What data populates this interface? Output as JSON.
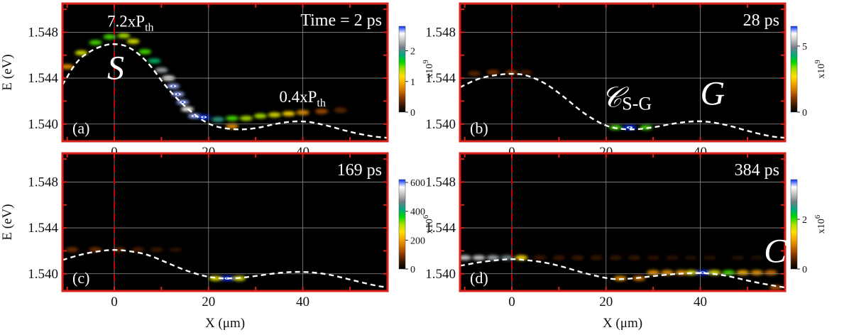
{
  "figure": {
    "x_unit_label": "X (μm)",
    "y_unit_label": "E (eV)",
    "colorbar_unit_label": "x10"
  },
  "chart_data": [
    {
      "id": "a",
      "type": "heatmap",
      "panel_label": "(a)",
      "annotation_time": "Time = 2 ps",
      "xlabel": "",
      "ylabel": "E (eV)",
      "xlim": [
        -11,
        58
      ],
      "ylim": [
        1.5385,
        1.5505
      ],
      "xticks": [
        0,
        20,
        40
      ],
      "yticks": [
        1.54,
        1.544,
        1.548
      ],
      "colorbar": {
        "exponent": "9",
        "ticks": [
          0,
          1,
          2
        ],
        "max": 2.8
      },
      "annotations": [
        {
          "id": "pump-high",
          "text": "7.2xP",
          "subscript": "th",
          "x": -1.5,
          "y": 1.5485
        },
        {
          "id": "pump-low",
          "text": "0.4xP",
          "subscript": "th",
          "x": 35,
          "y": 1.5419
        },
        {
          "id": "label-S",
          "text": "S",
          "x": -1.5,
          "y": 1.5439,
          "italic": true
        }
      ],
      "potential_curve": [
        [
          -11,
          1.5434
        ],
        [
          -8,
          1.5455
        ],
        [
          -5,
          1.5464
        ],
        [
          -2,
          1.5469
        ],
        [
          0,
          1.547
        ],
        [
          3,
          1.5468
        ],
        [
          7,
          1.5455
        ],
        [
          11,
          1.5432
        ],
        [
          15,
          1.5415
        ],
        [
          19,
          1.5402
        ],
        [
          22,
          1.5397
        ],
        [
          26,
          1.5395
        ],
        [
          30,
          1.5396
        ],
        [
          35,
          1.5401
        ],
        [
          40,
          1.5403
        ],
        [
          45,
          1.5399
        ],
        [
          50,
          1.5393
        ],
        [
          55,
          1.5389
        ],
        [
          58,
          1.5388
        ]
      ],
      "emission": [
        {
          "x": -10,
          "y": 1.545,
          "z": 0.3
        },
        {
          "x": -7,
          "y": 1.5462,
          "z": 0.45
        },
        {
          "x": -4,
          "y": 1.5471,
          "z": 0.55
        },
        {
          "x": -1,
          "y": 1.5476,
          "z": 0.55
        },
        {
          "x": 2,
          "y": 1.5477,
          "z": 0.5
        },
        {
          "x": 4,
          "y": 1.5472,
          "z": 0.45
        },
        {
          "x": 6.5,
          "y": 1.5463,
          "z": 0.55
        },
        {
          "x": 8.5,
          "y": 1.5455,
          "z": 0.65
        },
        {
          "x": 10,
          "y": 1.5447,
          "z": 0.8
        },
        {
          "x": 11.5,
          "y": 1.544,
          "z": 0.9
        },
        {
          "x": 12.5,
          "y": 1.5433,
          "z": 0.95
        },
        {
          "x": 13.5,
          "y": 1.5426,
          "z": 0.95
        },
        {
          "x": 14.5,
          "y": 1.5419,
          "z": 0.95
        },
        {
          "x": 15.5,
          "y": 1.5413,
          "z": 0.9
        },
        {
          "x": 17,
          "y": 1.5407,
          "z": 0.95
        },
        {
          "x": 19,
          "y": 1.5406,
          "z": 1.0
        },
        {
          "x": 22,
          "y": 1.5404,
          "z": 0.7
        },
        {
          "x": 25,
          "y": 1.5405,
          "z": 0.55
        },
        {
          "x": 28,
          "y": 1.5405,
          "z": 0.5
        },
        {
          "x": 31,
          "y": 1.5407,
          "z": 0.5
        },
        {
          "x": 34,
          "y": 1.5408,
          "z": 0.45
        },
        {
          "x": 37,
          "y": 1.5409,
          "z": 0.4
        },
        {
          "x": 40,
          "y": 1.541,
          "z": 0.3
        },
        {
          "x": 44,
          "y": 1.5411,
          "z": 0.2
        },
        {
          "x": 48,
          "y": 1.5412,
          "z": 0.12
        },
        {
          "x": 25,
          "y": 1.5398,
          "z": 0.3
        }
      ]
    },
    {
      "id": "b",
      "type": "heatmap",
      "panel_label": "(b)",
      "annotation_time": "28 ps",
      "xlabel": "",
      "ylabel": "",
      "xlim": [
        -11,
        58
      ],
      "ylim": [
        1.5385,
        1.5505
      ],
      "xticks": [
        0,
        20,
        40
      ],
      "yticks": [
        1.54,
        1.544,
        1.548
      ],
      "colorbar": {
        "exponent": "9",
        "ticks": [
          0,
          5
        ],
        "max": 6.5
      },
      "annotations": [
        {
          "id": "label-C-SG",
          "text": "𝒞",
          "subscript": "S-G",
          "x": 19,
          "y": 1.5415,
          "italic": true
        },
        {
          "id": "label-G",
          "text": "G",
          "x": 40,
          "y": 1.5417,
          "italic": true
        }
      ],
      "potential_curve": [
        [
          -11,
          1.5432
        ],
        [
          -7,
          1.544
        ],
        [
          -3,
          1.5443
        ],
        [
          0,
          1.5444
        ],
        [
          3,
          1.5443
        ],
        [
          7,
          1.5436
        ],
        [
          11,
          1.5424
        ],
        [
          15,
          1.541
        ],
        [
          19,
          1.54
        ],
        [
          22,
          1.5396
        ],
        [
          26,
          1.5395
        ],
        [
          30,
          1.5397
        ],
        [
          35,
          1.5401
        ],
        [
          40,
          1.5403
        ],
        [
          45,
          1.54
        ],
        [
          50,
          1.5394
        ],
        [
          55,
          1.5389
        ],
        [
          58,
          1.5388
        ]
      ],
      "emission": [
        {
          "x": 25,
          "y": 1.5397,
          "z": 1.0
        },
        {
          "x": 22,
          "y": 1.5397,
          "z": 0.55
        },
        {
          "x": 28.5,
          "y": 1.5397,
          "z": 0.55
        },
        {
          "x": -8,
          "y": 1.5444,
          "z": 0.12
        },
        {
          "x": -4,
          "y": 1.5445,
          "z": 0.15
        },
        {
          "x": 0,
          "y": 1.5445,
          "z": 0.15
        },
        {
          "x": 3,
          "y": 1.5445,
          "z": 0.1
        }
      ]
    },
    {
      "id": "c",
      "type": "heatmap",
      "panel_label": "(c)",
      "annotation_time": "169 ps",
      "xlabel": "X (μm)",
      "ylabel": "E (eV)",
      "xlim": [
        -11,
        58
      ],
      "ylim": [
        1.5385,
        1.5505
      ],
      "xticks": [
        0,
        20,
        40
      ],
      "yticks": [
        1.54,
        1.544,
        1.548
      ],
      "colorbar": {
        "exponent": "6",
        "ticks": [
          0,
          200,
          400,
          600
        ],
        "max": 620
      },
      "annotations": [],
      "potential_curve": [
        [
          -11,
          1.5412
        ],
        [
          -7,
          1.5417
        ],
        [
          -3,
          1.542
        ],
        [
          0,
          1.5421
        ],
        [
          3,
          1.542
        ],
        [
          7,
          1.5417
        ],
        [
          11,
          1.541
        ],
        [
          15,
          1.5403
        ],
        [
          19,
          1.5398
        ],
        [
          22,
          1.5396
        ],
        [
          26,
          1.5396
        ],
        [
          30,
          1.5398
        ],
        [
          35,
          1.5401
        ],
        [
          40,
          1.5402
        ],
        [
          45,
          1.54
        ],
        [
          50,
          1.5395
        ],
        [
          55,
          1.539
        ],
        [
          58,
          1.5388
        ]
      ],
      "emission": [
        {
          "x": 24,
          "y": 1.5396,
          "z": 1.0
        },
        {
          "x": 21.5,
          "y": 1.5396,
          "z": 0.45
        },
        {
          "x": 26.5,
          "y": 1.5396,
          "z": 0.45
        },
        {
          "x": -9,
          "y": 1.5421,
          "z": 0.14
        },
        {
          "x": -4,
          "y": 1.5421,
          "z": 0.14
        },
        {
          "x": 1,
          "y": 1.5421,
          "z": 0.12
        },
        {
          "x": 5,
          "y": 1.5421,
          "z": 0.1
        },
        {
          "x": 9,
          "y": 1.5421,
          "z": 0.08
        },
        {
          "x": 13,
          "y": 1.5421,
          "z": 0.06
        }
      ]
    },
    {
      "id": "d",
      "type": "heatmap",
      "panel_label": "(d)",
      "annotation_time": "384 ps",
      "xlabel": "X (μm)",
      "ylabel": "",
      "xlim": [
        -11,
        58
      ],
      "ylim": [
        1.5385,
        1.5505
      ],
      "xticks": [
        0,
        20,
        40
      ],
      "yticks": [
        1.54,
        1.544,
        1.548
      ],
      "colorbar": {
        "exponent": "6",
        "ticks": [
          0,
          2
        ],
        "max": 3.6
      },
      "annotations": [
        {
          "id": "label-C",
          "text": "C",
          "x": 53.5,
          "y": 1.541,
          "italic": true
        }
      ],
      "potential_curve": [
        [
          -11,
          1.5407
        ],
        [
          -7,
          1.541
        ],
        [
          -3,
          1.5412
        ],
        [
          0,
          1.5413
        ],
        [
          3,
          1.5412
        ],
        [
          7,
          1.541
        ],
        [
          11,
          1.5406
        ],
        [
          15,
          1.5401
        ],
        [
          19,
          1.5397
        ],
        [
          22,
          1.5395
        ],
        [
          26,
          1.5396
        ],
        [
          30,
          1.5398
        ],
        [
          35,
          1.54
        ],
        [
          40,
          1.5401
        ],
        [
          45,
          1.5399
        ],
        [
          50,
          1.5394
        ],
        [
          55,
          1.539
        ],
        [
          58,
          1.5388
        ]
      ],
      "emission": [
        {
          "x": -10,
          "y": 1.5414,
          "z": 0.85
        },
        {
          "x": -7,
          "y": 1.5414,
          "z": 0.85
        },
        {
          "x": -4,
          "y": 1.5414,
          "z": 0.8
        },
        {
          "x": -1,
          "y": 1.5414,
          "z": 0.75
        },
        {
          "x": 2,
          "y": 1.5414,
          "z": 0.4
        },
        {
          "x": 40.5,
          "y": 1.5401,
          "z": 1.0
        },
        {
          "x": 38,
          "y": 1.5401,
          "z": 0.45
        },
        {
          "x": 43,
          "y": 1.5401,
          "z": 0.45
        },
        {
          "x": 46,
          "y": 1.5401,
          "z": 0.55
        },
        {
          "x": 23,
          "y": 1.5396,
          "z": 0.3
        },
        {
          "x": 27,
          "y": 1.5396,
          "z": 0.25
        },
        {
          "x": 30,
          "y": 1.5401,
          "z": 0.3
        },
        {
          "x": 33,
          "y": 1.5401,
          "z": 0.3
        },
        {
          "x": 36,
          "y": 1.5401,
          "z": 0.3
        },
        {
          "x": 49,
          "y": 1.5401,
          "z": 0.35
        },
        {
          "x": 52,
          "y": 1.5401,
          "z": 0.3
        },
        {
          "x": 55,
          "y": 1.5401,
          "z": 0.25
        },
        {
          "x": 6,
          "y": 1.5414,
          "z": 0.08
        },
        {
          "x": 10,
          "y": 1.5414,
          "z": 0.08
        },
        {
          "x": 14,
          "y": 1.5414,
          "z": 0.08
        },
        {
          "x": 18,
          "y": 1.5414,
          "z": 0.07
        },
        {
          "x": 22,
          "y": 1.5414,
          "z": 0.07
        },
        {
          "x": 26,
          "y": 1.5414,
          "z": 0.07
        },
        {
          "x": 30,
          "y": 1.5414,
          "z": 0.06
        },
        {
          "x": 34,
          "y": 1.5414,
          "z": 0.06
        },
        {
          "x": 38,
          "y": 1.5414,
          "z": 0.05
        },
        {
          "x": 42,
          "y": 1.5414,
          "z": 0.05
        },
        {
          "x": 48,
          "y": 1.5414,
          "z": 0.05
        },
        {
          "x": 52,
          "y": 1.5414,
          "z": 0.04
        },
        {
          "x": 56,
          "y": 1.5388,
          "z": 0.2
        }
      ]
    }
  ],
  "colors": {
    "frame": "#d8201c",
    "plot_background": "#000000",
    "grid": "#8c8c8c",
    "potential_curve": "#ffffff",
    "center_marker": "#c8000a",
    "annotation_text": "#ffffff",
    "axis_text": "#111111",
    "colormap": [
      "#000000",
      "#3a1800",
      "#8a3800",
      "#d07000",
      "#f4a800",
      "#ffe000",
      "#a8e000",
      "#00d800",
      "#00a880",
      "#708088",
      "#c0c0c0",
      "#ffffff",
      "#0030ff"
    ]
  }
}
